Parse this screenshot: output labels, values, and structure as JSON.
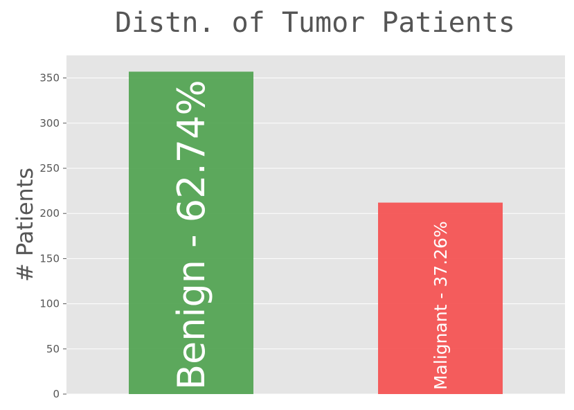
{
  "chart_data": {
    "type": "bar",
    "title": "Distn. of Tumor Patients",
    "xlabel": "",
    "ylabel": "# Patients",
    "categories": [
      "Benign",
      "Malignant"
    ],
    "values": [
      357,
      212
    ],
    "bar_labels": [
      "Benign - 62.74%",
      "Malignant - 37.26%"
    ],
    "bar_colors": [
      "#4ca14c",
      "#f54d4d"
    ],
    "ylim": [
      0,
      375
    ],
    "yticks": [
      0,
      50,
      100,
      150,
      200,
      250,
      300,
      350
    ],
    "grid": true,
    "background": "#e5e5e5"
  }
}
